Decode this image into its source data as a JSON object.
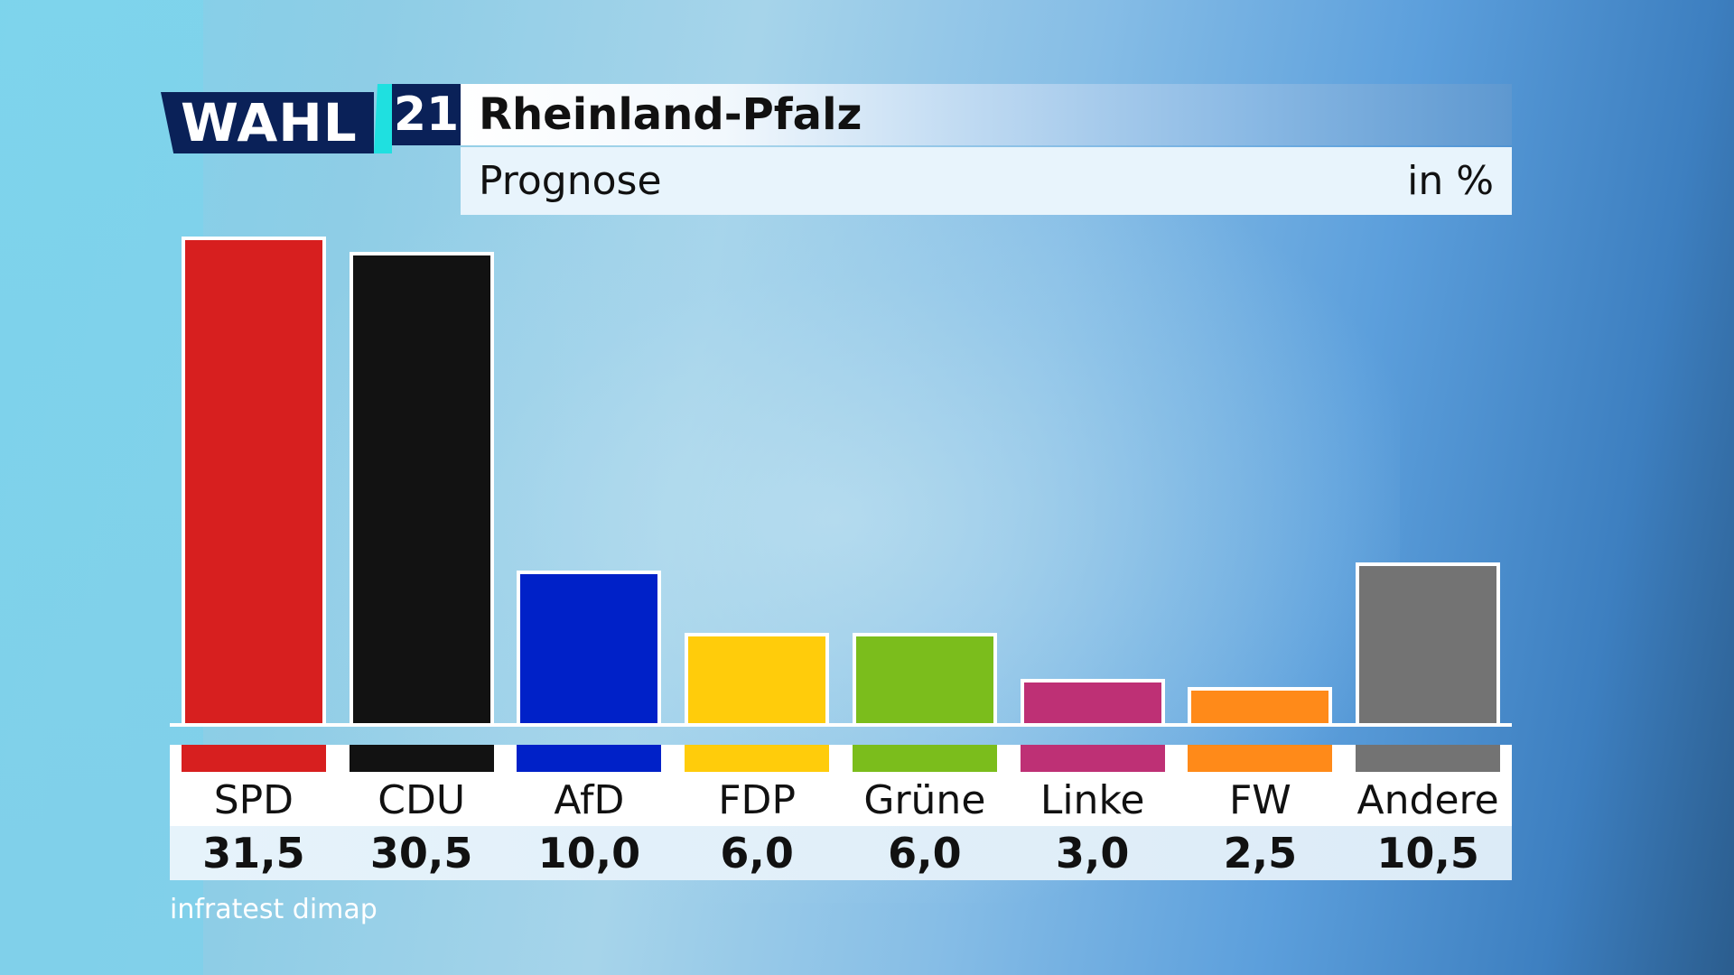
{
  "header": {
    "logo_text": "WAHL",
    "logo_year": "21",
    "title": "Rheinland-Pfalz",
    "subtitle": "Prognose",
    "unit": "in %"
  },
  "source": "infratest dimap",
  "chart_data": {
    "type": "bar",
    "title": "Rheinland-Pfalz",
    "subtitle": "Prognose",
    "ylabel": "in %",
    "ylim": [
      0,
      31.5
    ],
    "grid": false,
    "categories": [
      "SPD",
      "CDU",
      "AfD",
      "FDP",
      "Grüne",
      "Linke",
      "FW",
      "Andere"
    ],
    "value_labels": [
      "31,5",
      "30,5",
      "10,0",
      "6,0",
      "6,0",
      "3,0",
      "2,5",
      "10,5"
    ],
    "values": [
      31.5,
      30.5,
      10.0,
      6.0,
      6.0,
      3.0,
      2.5,
      10.5
    ],
    "colors": [
      "#d71f1f",
      "#121212",
      "#0021c8",
      "#ffcc0b",
      "#7bbd1c",
      "#be3075",
      "#ff8a19",
      "#737373"
    ]
  }
}
